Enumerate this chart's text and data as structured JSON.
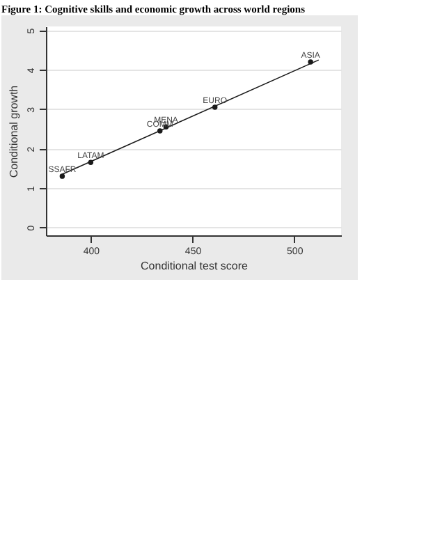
{
  "chart_data": {
    "type": "scatter",
    "title": "Figure 1: Cognitive skills and economic growth across world regions",
    "xlabel": "Conditional test score",
    "ylabel": "Conditional growth",
    "x": [
      386,
      400,
      437,
      434,
      461,
      508
    ],
    "series": [
      {
        "type": "line",
        "color": "#1a1a1a",
        "x": [
          386,
          512
        ],
        "values": [
          1.35,
          4.25
        ]
      },
      {
        "color": "#1a1a1a",
        "marker": "circle",
        "values": [
          1.3,
          1.65,
          2.55,
          2.45,
          3.05,
          4.2
        ]
      }
    ],
    "annotations": [
      {
        "text": "SSAFR",
        "x": 386,
        "y": 1.3
      },
      {
        "text": "LATAM",
        "x": 400,
        "y": 1.65
      },
      {
        "text": "MENA",
        "x": 437,
        "y": 2.55
      },
      {
        "text": "COMM",
        "x": 434,
        "y": 2.45
      },
      {
        "text": "EURO",
        "x": 461,
        "y": 3.05
      },
      {
        "text": "ASIA",
        "x": 508,
        "y": 4.2
      }
    ],
    "xlim": [
      378,
      523
    ],
    "xticks": [
      400,
      450,
      500
    ],
    "ylim": [
      -0.2,
      5.1
    ],
    "yticks": [
      0,
      1,
      2,
      3,
      4,
      5
    ],
    "grid": "y"
  }
}
